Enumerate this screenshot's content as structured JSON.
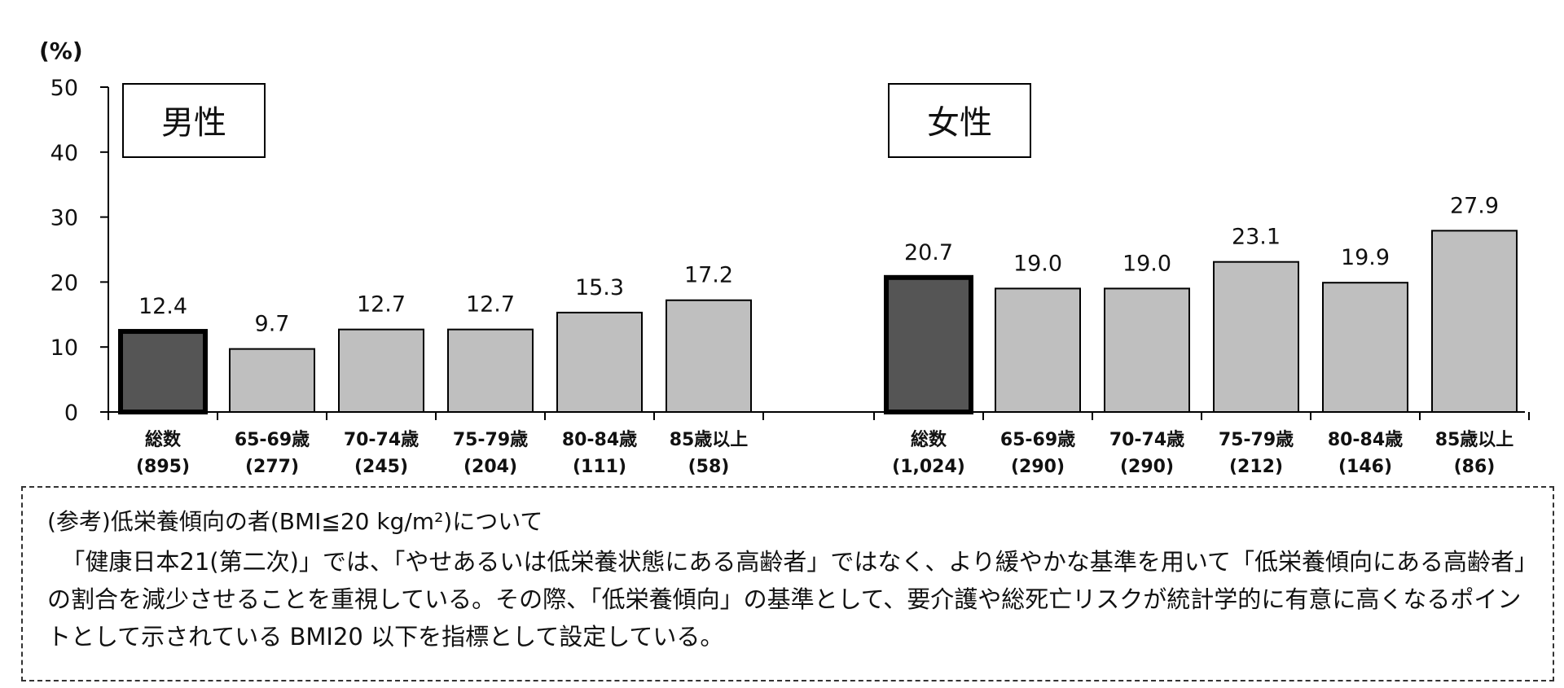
{
  "chart_data": [
    {
      "type": "bar",
      "panel_label": "男性",
      "ylabel": "(%)",
      "ylim": [
        0,
        50
      ],
      "yticks": [
        0,
        10,
        20,
        30,
        40,
        50
      ],
      "categories": [
        {
          "label": "総数",
          "n": "(895)"
        },
        {
          "label": "65-69歳",
          "n": "(277)"
        },
        {
          "label": "70-74歳",
          "n": "(245)"
        },
        {
          "label": "75-79歳",
          "n": "(204)"
        },
        {
          "label": "80-84歳",
          "n": "(111)"
        },
        {
          "label": "85歳以上",
          "n": "(58)"
        }
      ],
      "values": [
        12.4,
        9.7,
        12.7,
        12.7,
        15.3,
        17.2
      ],
      "value_labels": [
        "12.4",
        "9.7",
        "12.7",
        "12.7",
        "15.3",
        "17.2"
      ],
      "highlight_index": 0,
      "colors": {
        "total": "#555555",
        "age": "#bfbfbf",
        "outline": "#000000"
      }
    },
    {
      "type": "bar",
      "panel_label": "女性",
      "ylim": [
        0,
        50
      ],
      "categories": [
        {
          "label": "総数",
          "n": "(1,024)"
        },
        {
          "label": "65-69歳",
          "n": "(290)"
        },
        {
          "label": "70-74歳",
          "n": "(290)"
        },
        {
          "label": "75-79歳",
          "n": "(212)"
        },
        {
          "label": "80-84歳",
          "n": "(146)"
        },
        {
          "label": "85歳以上",
          "n": "(86)"
        }
      ],
      "values": [
        20.7,
        19.0,
        19.0,
        23.1,
        19.9,
        27.9
      ],
      "value_labels": [
        "20.7",
        "19.0",
        "19.0",
        "23.1",
        "19.9",
        "27.9"
      ],
      "highlight_index": 0,
      "colors": {
        "total": "#555555",
        "age": "#bfbfbf",
        "outline": "#000000"
      }
    }
  ],
  "note": {
    "title": "(参考)低栄養傾向の者(BMI≦20 kg/m²)について",
    "body": "「健康日本21(第二次)」では、「やせあるいは低栄養状態にある高齢者」ではなく、より緩やかな基準を用いて「低栄養傾向にある高齢者」の割合を減少させることを重視している。その際、「低栄養傾向」の基準として、要介護や総死亡リスクが統計学的に有意に高くなるポイントとして示されている BMI20 以下を指標として設定している。"
  }
}
